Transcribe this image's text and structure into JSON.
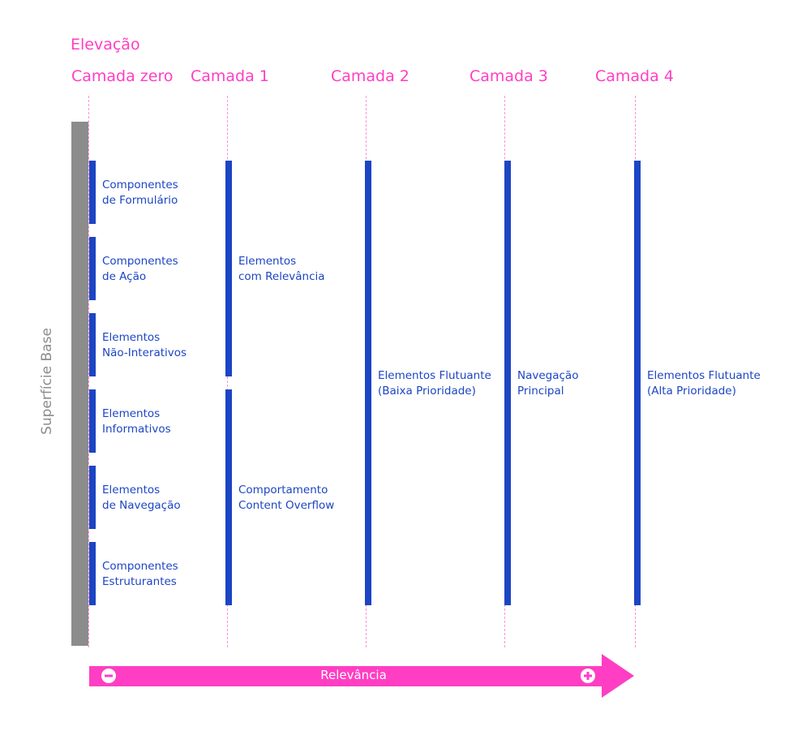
{
  "title": "Elevação",
  "layers": [
    "Camada zero",
    "Camada 1",
    "Camada 2",
    "Camada 3",
    "Camada 4"
  ],
  "surface_label": "Superfície Base",
  "layer0_items": [
    {
      "line1": "Componentes",
      "line2": "de Formulário"
    },
    {
      "line1": "Componentes",
      "line2": "de Ação"
    },
    {
      "line1": "Elementos",
      "line2": "Não-Interativos"
    },
    {
      "line1": "Elementos",
      "line2": "Informativos"
    },
    {
      "line1": "Elementos",
      "line2": "de Navegação"
    },
    {
      "line1": "Componentes",
      "line2": "Estruturantes"
    }
  ],
  "layer1_items": [
    {
      "line1": "Elementos",
      "line2": "com Relevância"
    },
    {
      "line1": "Comportamento",
      "line2": "Content Overflow"
    }
  ],
  "layer2_item": {
    "line1": "Elementos Flutuante",
    "line2": "(Baixa Prioridade)"
  },
  "layer3_item": {
    "line1": "Navegação",
    "line2": "Principal"
  },
  "layer4_item": {
    "line1": "Elementos Flutuante",
    "line2": "(Alta Prioridade)"
  },
  "axis": {
    "label": "Relevância",
    "min_symbol": "minus",
    "max_symbol": "plus"
  },
  "colors": {
    "accent": "#ff3ec3",
    "bar": "#1c45c4",
    "surface": "#8c8c8c"
  }
}
